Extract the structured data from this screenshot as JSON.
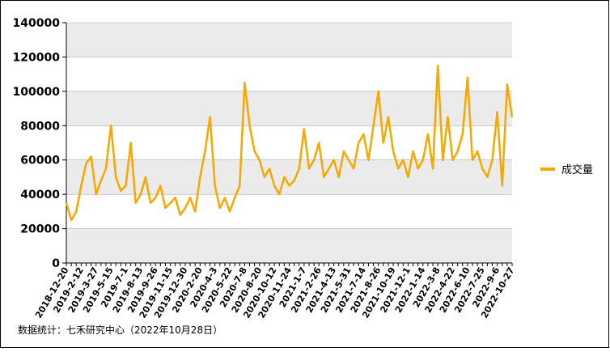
{
  "chart_data": {
    "type": "line",
    "categories": [
      "2018-12-20",
      null,
      null,
      "2019-2-12",
      null,
      null,
      "2019-3-27",
      null,
      null,
      "2019-5-15",
      null,
      null,
      "2019-7-1",
      null,
      null,
      "2019-8-13",
      null,
      null,
      "2019-9-26",
      null,
      null,
      "2019-11-15",
      null,
      null,
      "2019-12-30",
      null,
      null,
      "2020-2-20",
      null,
      null,
      "2020-4-3",
      null,
      null,
      "2020-5-22",
      null,
      null,
      "2020-7-8",
      null,
      null,
      "2020-8-20",
      null,
      null,
      "2020-10-12",
      null,
      null,
      "2020-11-24",
      null,
      null,
      "2021-1-7",
      null,
      null,
      "2021-2-26",
      null,
      null,
      "2021-4-13",
      null,
      null,
      "2021-5-31",
      null,
      null,
      "2021-7-14",
      null,
      null,
      "2021-8-26",
      null,
      null,
      "2021-10-19",
      null,
      null,
      "2021-12-1",
      null,
      null,
      "2022-1-14",
      null,
      null,
      "2022-3-8",
      null,
      null,
      "2022-4-22",
      null,
      null,
      "2022-6-10",
      null,
      null,
      "2022-7-25",
      null,
      null,
      "2022-9-6",
      null,
      null,
      "2022-10-27"
    ],
    "series": [
      {
        "name": "成交量",
        "color": "#f5a800",
        "values": [
          35000,
          25000,
          30000,
          45000,
          58000,
          62000,
          40000,
          48000,
          55000,
          80000,
          50000,
          42000,
          45000,
          70000,
          35000,
          40000,
          50000,
          35000,
          38000,
          45000,
          32000,
          35000,
          38000,
          28000,
          32000,
          38000,
          30000,
          50000,
          65000,
          85000,
          45000,
          32000,
          38000,
          30000,
          38000,
          45000,
          105000,
          80000,
          65000,
          60000,
          50000,
          55000,
          45000,
          40000,
          50000,
          45000,
          48000,
          55000,
          78000,
          55000,
          60000,
          70000,
          50000,
          55000,
          60000,
          50000,
          65000,
          60000,
          55000,
          70000,
          75000,
          60000,
          80000,
          100000,
          70000,
          85000,
          65000,
          55000,
          60000,
          50000,
          65000,
          55000,
          60000,
          75000,
          55000,
          115000,
          60000,
          85000,
          60000,
          65000,
          75000,
          108000,
          60000,
          65000,
          55000,
          50000,
          60000,
          88000,
          45000,
          104000,
          85000
        ]
      }
    ],
    "ylim": [
      0,
      140000
    ],
    "yticks": [
      0,
      20000,
      40000,
      60000,
      80000,
      100000,
      120000,
      140000
    ],
    "grid": true,
    "legend": "right",
    "source": "数据统计：七禾研究中心（2022年10月28日）"
  }
}
